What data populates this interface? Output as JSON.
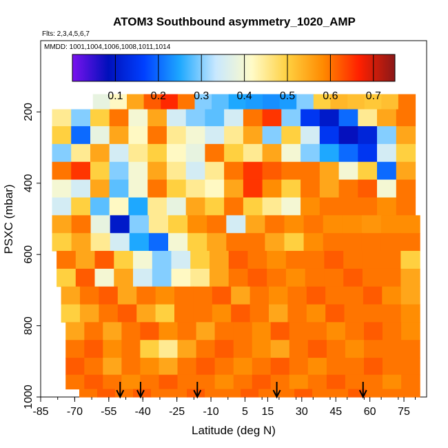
{
  "chart_data": {
    "type": "heatmap",
    "title": "ATOM3 Southbound asymmetry_1020_AMP",
    "flights_note": "Flts: 2,3,4,5,6,7",
    "dates_note": "MMDD: 1001,1004,1006,1008,1011,1014",
    "xlabel": "Latitude (deg N)",
    "ylabel": "PSXC (mbar)",
    "xlim": [
      -85,
      85
    ],
    "ylim": [
      1000,
      0
    ],
    "x_ticks": [
      -85,
      -70,
      -55,
      -40,
      -25,
      -10,
      5,
      15,
      30,
      45,
      60,
      75
    ],
    "x_tick_labels": [
      "-85",
      "-70",
      "-55",
      "-40",
      "-25",
      "-10",
      "5",
      "15",
      "30",
      "45",
      "60",
      "75"
    ],
    "y_ticks": [
      200,
      400,
      600,
      800,
      1000
    ],
    "y_tick_labels": [
      "200",
      "400",
      "600",
      "800",
      "1000"
    ],
    "colorbar": {
      "range": [
        0.0,
        0.75
      ],
      "ticks": [
        0.1,
        0.2,
        0.3,
        0.4,
        0.5,
        0.6,
        0.7
      ],
      "tick_labels": [
        "0.1",
        "0.2",
        "0.3",
        "0.4",
        "0.5",
        "0.6",
        "0.7"
      ],
      "stops": [
        "#7a12ee",
        "#0010bb",
        "#0040ff",
        "#1ea8ff",
        "#c8e8ff",
        "#fffbc8",
        "#ffd040",
        "#ff8a00",
        "#ff2000",
        "#8a1818"
      ]
    },
    "pressure_levels": [
      170,
      215,
      265,
      315,
      365,
      415,
      465,
      515,
      565,
      615,
      665,
      715,
      765,
      815,
      865,
      915,
      960,
      995
    ],
    "level_extents": [
      [
        -62,
        80
      ],
      [
        -80,
        80
      ],
      [
        -80,
        80
      ],
      [
        -80,
        80
      ],
      [
        -80,
        80
      ],
      [
        -80,
        80
      ],
      [
        -80,
        80
      ],
      [
        -80,
        82
      ],
      [
        -80,
        82
      ],
      [
        -78,
        82
      ],
      [
        -78,
        82
      ],
      [
        -76,
        82
      ],
      [
        -76,
        82
      ],
      [
        -74,
        82
      ],
      [
        -74,
        82
      ],
      [
        -74,
        82
      ],
      [
        -74,
        82
      ],
      [
        -68,
        82
      ]
    ],
    "values_by_level": [
      [
        0.38,
        0.42,
        0.55,
        0.62,
        0.66,
        0.6,
        0.3,
        0.28,
        0.25,
        0.24,
        0.23,
        0.24,
        0.3,
        0.5,
        0.53,
        0.52,
        0.51,
        0.52,
        0.6
      ],
      [
        0.45,
        0.3,
        0.5,
        0.6,
        0.4,
        0.55,
        0.35,
        0.3,
        0.28,
        0.35,
        0.6,
        0.65,
        0.3,
        0.15,
        0.1,
        0.2,
        0.45,
        0.55,
        0.6
      ],
      [
        0.5,
        0.2,
        0.38,
        0.55,
        0.42,
        0.6,
        0.45,
        0.4,
        0.35,
        0.45,
        0.55,
        0.3,
        0.5,
        0.35,
        0.15,
        0.08,
        0.12,
        0.3,
        0.55
      ],
      [
        0.3,
        0.45,
        0.55,
        0.35,
        0.45,
        0.5,
        0.42,
        0.38,
        0.6,
        0.5,
        0.45,
        0.55,
        0.4,
        0.3,
        0.25,
        0.2,
        0.15,
        0.35,
        0.5
      ],
      [
        0.6,
        0.65,
        0.5,
        0.3,
        0.4,
        0.55,
        0.45,
        0.35,
        0.45,
        0.6,
        0.65,
        0.62,
        0.6,
        0.6,
        0.55,
        0.4,
        0.5,
        0.2,
        0.55
      ],
      [
        0.4,
        0.35,
        0.55,
        0.28,
        0.4,
        0.6,
        0.5,
        0.45,
        0.42,
        0.55,
        0.65,
        0.58,
        0.5,
        0.6,
        0.55,
        0.6,
        0.62,
        0.4,
        0.6
      ],
      [
        0.35,
        0.5,
        0.28,
        0.42,
        0.25,
        0.45,
        0.38,
        0.55,
        0.5,
        0.6,
        0.5,
        0.45,
        0.4,
        0.58,
        0.6,
        0.6,
        0.6,
        0.58,
        0.6
      ],
      [
        0.55,
        0.6,
        0.38,
        0.1,
        0.3,
        0.45,
        0.5,
        0.58,
        0.6,
        0.35,
        0.55,
        0.6,
        0.58,
        0.6,
        0.58,
        0.58,
        0.57,
        0.58,
        0.58
      ],
      [
        0.5,
        0.55,
        0.45,
        0.35,
        0.25,
        0.2,
        0.4,
        0.5,
        0.55,
        0.6,
        0.6,
        0.55,
        0.5,
        0.58,
        0.6,
        0.6,
        0.6,
        0.6,
        0.6
      ],
      [
        0.6,
        0.55,
        0.62,
        0.5,
        0.4,
        0.3,
        0.35,
        0.5,
        0.55,
        0.62,
        0.6,
        0.58,
        0.6,
        0.6,
        0.62,
        0.6,
        0.6,
        0.6,
        0.5
      ],
      [
        0.5,
        0.62,
        0.4,
        0.55,
        0.35,
        0.3,
        0.42,
        0.45,
        0.55,
        0.6,
        0.62,
        0.6,
        0.58,
        0.6,
        0.6,
        0.62,
        0.6,
        0.6,
        0.55
      ],
      [
        0.55,
        0.6,
        0.62,
        0.55,
        0.6,
        0.58,
        0.6,
        0.6,
        0.62,
        0.55,
        0.6,
        0.58,
        0.6,
        0.62,
        0.6,
        0.6,
        0.62,
        0.58,
        0.55
      ],
      [
        0.5,
        0.55,
        0.6,
        0.62,
        0.55,
        0.5,
        0.6,
        0.6,
        0.58,
        0.62,
        0.6,
        0.55,
        0.6,
        0.58,
        0.62,
        0.6,
        0.6,
        0.6,
        0.58
      ],
      [
        0.55,
        0.6,
        0.55,
        0.6,
        0.62,
        0.58,
        0.6,
        0.55,
        0.6,
        0.6,
        0.58,
        0.62,
        0.6,
        0.6,
        0.58,
        0.6,
        0.62,
        0.6,
        0.58
      ],
      [
        0.6,
        0.62,
        0.58,
        0.6,
        0.5,
        0.45,
        0.55,
        0.6,
        0.62,
        0.6,
        0.58,
        0.55,
        0.6,
        0.62,
        0.6,
        0.58,
        0.6,
        0.6,
        0.6
      ],
      [
        0.62,
        0.6,
        0.55,
        0.6,
        0.58,
        0.55,
        0.6,
        0.62,
        0.6,
        0.58,
        0.6,
        0.62,
        0.6,
        0.58,
        0.6,
        0.6,
        0.62,
        0.6,
        0.6
      ],
      [
        0.6,
        0.62,
        0.6,
        0.58,
        0.6,
        0.62,
        0.6,
        0.6,
        0.58,
        0.6,
        0.62,
        0.6,
        0.58,
        0.6,
        0.62,
        0.6,
        0.6,
        0.58,
        0.6
      ],
      [
        0.6,
        0.62,
        0.6,
        0.62,
        0.6,
        0.6,
        0.62,
        0.6,
        0.6,
        0.62,
        0.6,
        0.6,
        0.62,
        0.6,
        0.6,
        0.62,
        0.6,
        0.6,
        0.6
      ]
    ],
    "marker_arrows_lat": [
      -50,
      -41,
      -16,
      19,
      57
    ]
  }
}
